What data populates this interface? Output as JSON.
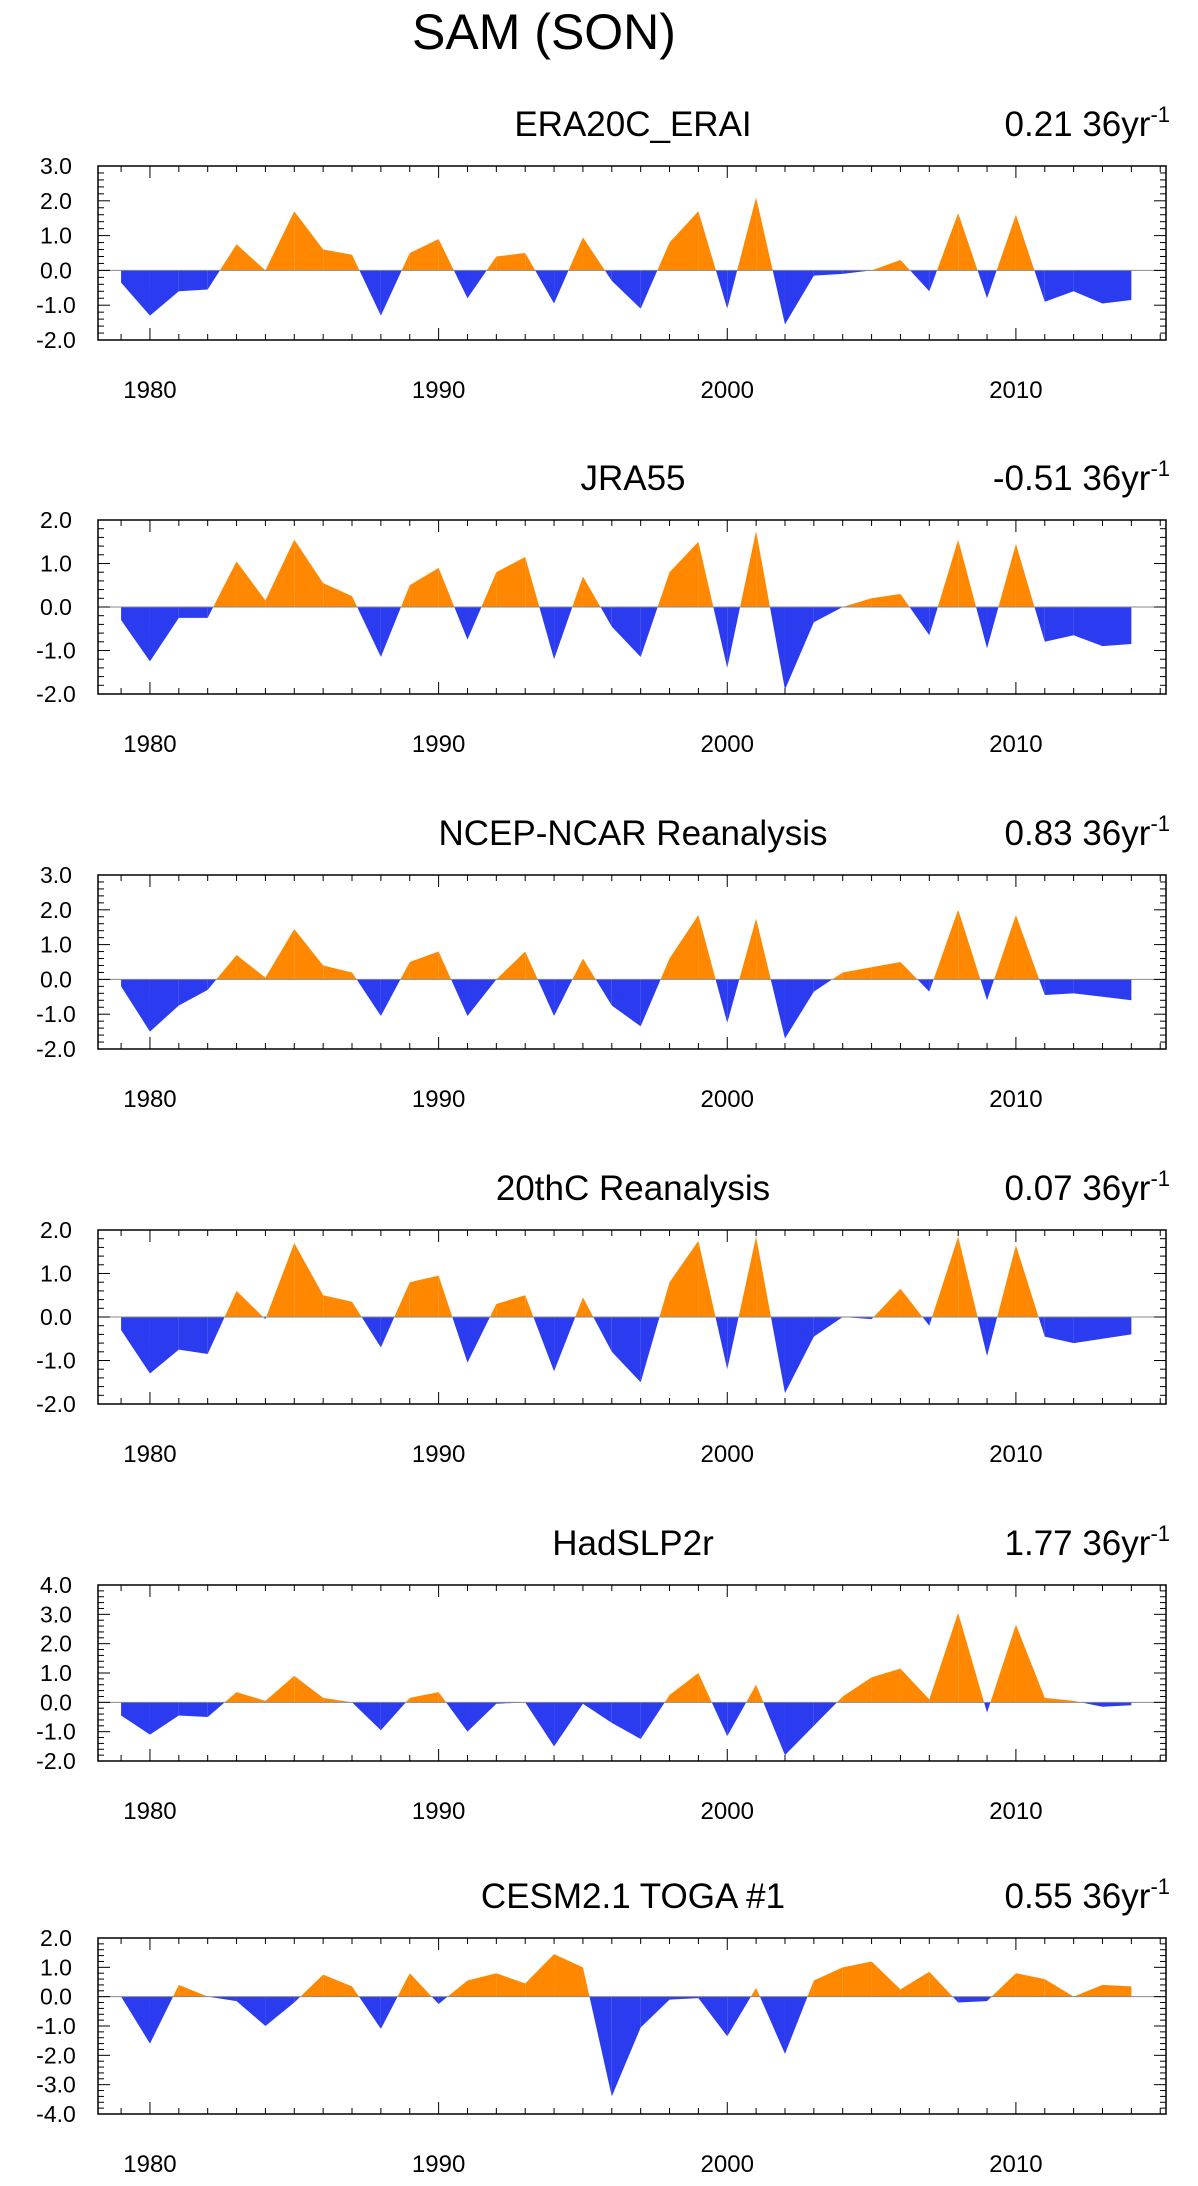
{
  "figure_title": "SAM (SON)",
  "trend_unit_base": "36yr",
  "trend_unit_exp": "-1",
  "colors": {
    "positive": "#FF8800",
    "negative": "#2B3BF0",
    "axis": "#000000"
  },
  "chart_data": [
    {
      "type": "area",
      "title": "ERA20C_ERAI",
      "trend": "0.21",
      "x": [
        1979,
        1980,
        1981,
        1982,
        1983,
        1984,
        1985,
        1986,
        1987,
        1988,
        1989,
        1990,
        1991,
        1992,
        1993,
        1994,
        1995,
        1996,
        1997,
        1998,
        1999,
        2000,
        2001,
        2002,
        2003,
        2004,
        2005,
        2006,
        2007,
        2008,
        2009,
        2010,
        2011,
        2012,
        2013,
        2014
      ],
      "values": [
        -0.35,
        -1.3,
        -0.6,
        -0.55,
        0.75,
        0.0,
        1.7,
        0.6,
        0.45,
        -1.3,
        0.5,
        0.9,
        -0.8,
        0.4,
        0.5,
        -0.95,
        0.95,
        -0.3,
        -1.1,
        0.8,
        1.7,
        -1.1,
        2.1,
        -1.55,
        -0.15,
        -0.1,
        0.0,
        0.3,
        -0.6,
        1.65,
        -0.8,
        1.6,
        -0.9,
        -0.6,
        -0.95,
        -0.85
      ],
      "ylim": [
        -2.0,
        3.0
      ],
      "yticks": [
        "3.0",
        "2.0",
        "1.0",
        "0.0",
        "-1.0",
        "-2.0"
      ],
      "ytick_values": [
        3,
        2,
        1,
        0,
        -1,
        -2
      ],
      "xticks": [
        "1980",
        "1990",
        "2000",
        "2010"
      ],
      "xtick_values": [
        1980,
        1990,
        2000,
        2010
      ]
    },
    {
      "type": "area",
      "title": "JRA55",
      "trend": "-0.51",
      "x": [
        1979,
        1980,
        1981,
        1982,
        1983,
        1984,
        1985,
        1986,
        1987,
        1988,
        1989,
        1990,
        1991,
        1992,
        1993,
        1994,
        1995,
        1996,
        1997,
        1998,
        1999,
        2000,
        2001,
        2002,
        2003,
        2004,
        2005,
        2006,
        2007,
        2008,
        2009,
        2010,
        2011,
        2012,
        2013,
        2014
      ],
      "values": [
        -0.3,
        -1.25,
        -0.25,
        -0.25,
        1.05,
        0.15,
        1.55,
        0.55,
        0.25,
        -1.15,
        0.5,
        0.9,
        -0.75,
        0.8,
        1.15,
        -1.2,
        0.7,
        -0.45,
        -1.15,
        0.8,
        1.5,
        -1.4,
        1.75,
        -1.9,
        -0.35,
        0.0,
        0.2,
        0.3,
        -0.65,
        1.55,
        -0.95,
        1.45,
        -0.8,
        -0.65,
        -0.9,
        -0.85
      ],
      "ylim": [
        -2.0,
        2.0
      ],
      "yticks": [
        "2.0",
        "1.0",
        "0.0",
        "-1.0",
        "-2.0"
      ],
      "ytick_values": [
        2,
        1,
        0,
        -1,
        -2
      ],
      "xticks": [
        "1980",
        "1990",
        "2000",
        "2010"
      ],
      "xtick_values": [
        1980,
        1990,
        2000,
        2010
      ]
    },
    {
      "type": "area",
      "title": "NCEP-NCAR Reanalysis",
      "trend": "0.83",
      "x": [
        1979,
        1980,
        1981,
        1982,
        1983,
        1984,
        1985,
        1986,
        1987,
        1988,
        1989,
        1990,
        1991,
        1992,
        1993,
        1994,
        1995,
        1996,
        1997,
        1998,
        1999,
        2000,
        2001,
        2002,
        2003,
        2004,
        2005,
        2006,
        2007,
        2008,
        2009,
        2010,
        2011,
        2012,
        2013,
        2014
      ],
      "values": [
        -0.2,
        -1.5,
        -0.75,
        -0.3,
        0.7,
        0.05,
        1.45,
        0.4,
        0.2,
        -1.05,
        0.5,
        0.8,
        -1.05,
        0.0,
        0.8,
        -1.05,
        0.6,
        -0.75,
        -1.35,
        0.6,
        1.85,
        -1.25,
        1.75,
        -1.7,
        -0.35,
        0.2,
        0.35,
        0.5,
        -0.35,
        2.0,
        -0.6,
        1.85,
        -0.45,
        -0.4,
        -0.5,
        -0.6
      ],
      "ylim": [
        -2.0,
        3.0
      ],
      "yticks": [
        "3.0",
        "2.0",
        "1.0",
        "0.0",
        "-1.0",
        "-2.0"
      ],
      "ytick_values": [
        3,
        2,
        1,
        0,
        -1,
        -2
      ],
      "xticks": [
        "1980",
        "1990",
        "2000",
        "2010"
      ],
      "xtick_values": [
        1980,
        1990,
        2000,
        2010
      ]
    },
    {
      "type": "area",
      "title": "20thC Reanalysis",
      "trend": "0.07",
      "x": [
        1979,
        1980,
        1981,
        1982,
        1983,
        1984,
        1985,
        1986,
        1987,
        1988,
        1989,
        1990,
        1991,
        1992,
        1993,
        1994,
        1995,
        1996,
        1997,
        1998,
        1999,
        2000,
        2001,
        2002,
        2003,
        2004,
        2005,
        2006,
        2007,
        2008,
        2009,
        2010,
        2011,
        2012,
        2013,
        2014
      ],
      "values": [
        -0.3,
        -1.3,
        -0.75,
        -0.85,
        0.6,
        -0.05,
        1.7,
        0.5,
        0.35,
        -0.7,
        0.8,
        0.95,
        -1.05,
        0.3,
        0.5,
        -1.25,
        0.45,
        -0.8,
        -1.5,
        0.8,
        1.75,
        -1.2,
        1.85,
        -1.75,
        -0.45,
        0.0,
        -0.05,
        0.65,
        -0.2,
        1.85,
        -0.9,
        1.65,
        -0.45,
        -0.6,
        -0.5,
        -0.4
      ],
      "ylim": [
        -2.0,
        2.0
      ],
      "yticks": [
        "2.0",
        "1.0",
        "0.0",
        "-1.0",
        "-2.0"
      ],
      "ytick_values": [
        2,
        1,
        0,
        -1,
        -2
      ],
      "xticks": [
        "1980",
        "1990",
        "2000",
        "2010"
      ],
      "xtick_values": [
        1980,
        1990,
        2000,
        2010
      ]
    },
    {
      "type": "area",
      "title": "HadSLP2r",
      "trend": "1.77",
      "x": [
        1979,
        1980,
        1981,
        1982,
        1983,
        1984,
        1985,
        1986,
        1987,
        1988,
        1989,
        1990,
        1991,
        1992,
        1993,
        1994,
        1995,
        1996,
        1997,
        1998,
        1999,
        2000,
        2001,
        2002,
        2003,
        2004,
        2005,
        2006,
        2007,
        2008,
        2009,
        2010,
        2011,
        2012,
        2013,
        2014
      ],
      "values": [
        -0.45,
        -1.1,
        -0.45,
        -0.5,
        0.35,
        0.05,
        0.9,
        0.15,
        0.0,
        -0.95,
        0.15,
        0.35,
        -1.0,
        -0.05,
        0.0,
        -1.5,
        -0.05,
        -0.7,
        -1.25,
        0.25,
        1.0,
        -1.15,
        0.6,
        -1.8,
        -0.8,
        0.2,
        0.85,
        1.15,
        0.1,
        3.05,
        -0.35,
        2.65,
        0.15,
        0.05,
        -0.15,
        -0.1
      ],
      "ylim": [
        -2.0,
        4.0
      ],
      "yticks": [
        "4.0",
        "3.0",
        "2.0",
        "1.0",
        "0.0",
        "-1.0",
        "-2.0"
      ],
      "ytick_values": [
        4,
        3,
        2,
        1,
        0,
        -1,
        -2
      ],
      "xticks": [
        "1980",
        "1990",
        "2000",
        "2010"
      ],
      "xtick_values": [
        1980,
        1990,
        2000,
        2010
      ]
    },
    {
      "type": "area",
      "title": "CESM2.1 TOGA #1",
      "trend": "0.55",
      "x": [
        1979,
        1980,
        1981,
        1982,
        1983,
        1984,
        1985,
        1986,
        1987,
        1988,
        1989,
        1990,
        1991,
        1992,
        1993,
        1994,
        1995,
        1996,
        1997,
        1998,
        1999,
        2000,
        2001,
        2002,
        2003,
        2004,
        2005,
        2006,
        2007,
        2008,
        2009,
        2010,
        2011,
        2012,
        2013,
        2014
      ],
      "values": [
        0.0,
        -1.6,
        0.4,
        0.0,
        -0.15,
        -1.0,
        -0.2,
        0.75,
        0.35,
        -1.1,
        0.8,
        -0.25,
        0.55,
        0.8,
        0.45,
        1.45,
        1.0,
        -3.4,
        -1.05,
        -0.1,
        -0.05,
        -1.35,
        0.3,
        -1.95,
        0.55,
        1.0,
        1.2,
        0.25,
        0.85,
        -0.2,
        -0.15,
        0.8,
        0.6,
        0.0,
        0.4,
        0.35
      ],
      "ylim": [
        -4.0,
        2.0
      ],
      "yticks": [
        "2.0",
        "1.0",
        "0.0",
        "-1.0",
        "-2.0",
        "-3.0",
        "-4.0"
      ],
      "ytick_values": [
        2,
        1,
        0,
        -1,
        -2,
        -3,
        -4
      ],
      "xticks": [
        "1980",
        "1990",
        "2000",
        "2010"
      ],
      "xtick_values": [
        1980,
        1990,
        2000,
        2010
      ]
    }
  ]
}
